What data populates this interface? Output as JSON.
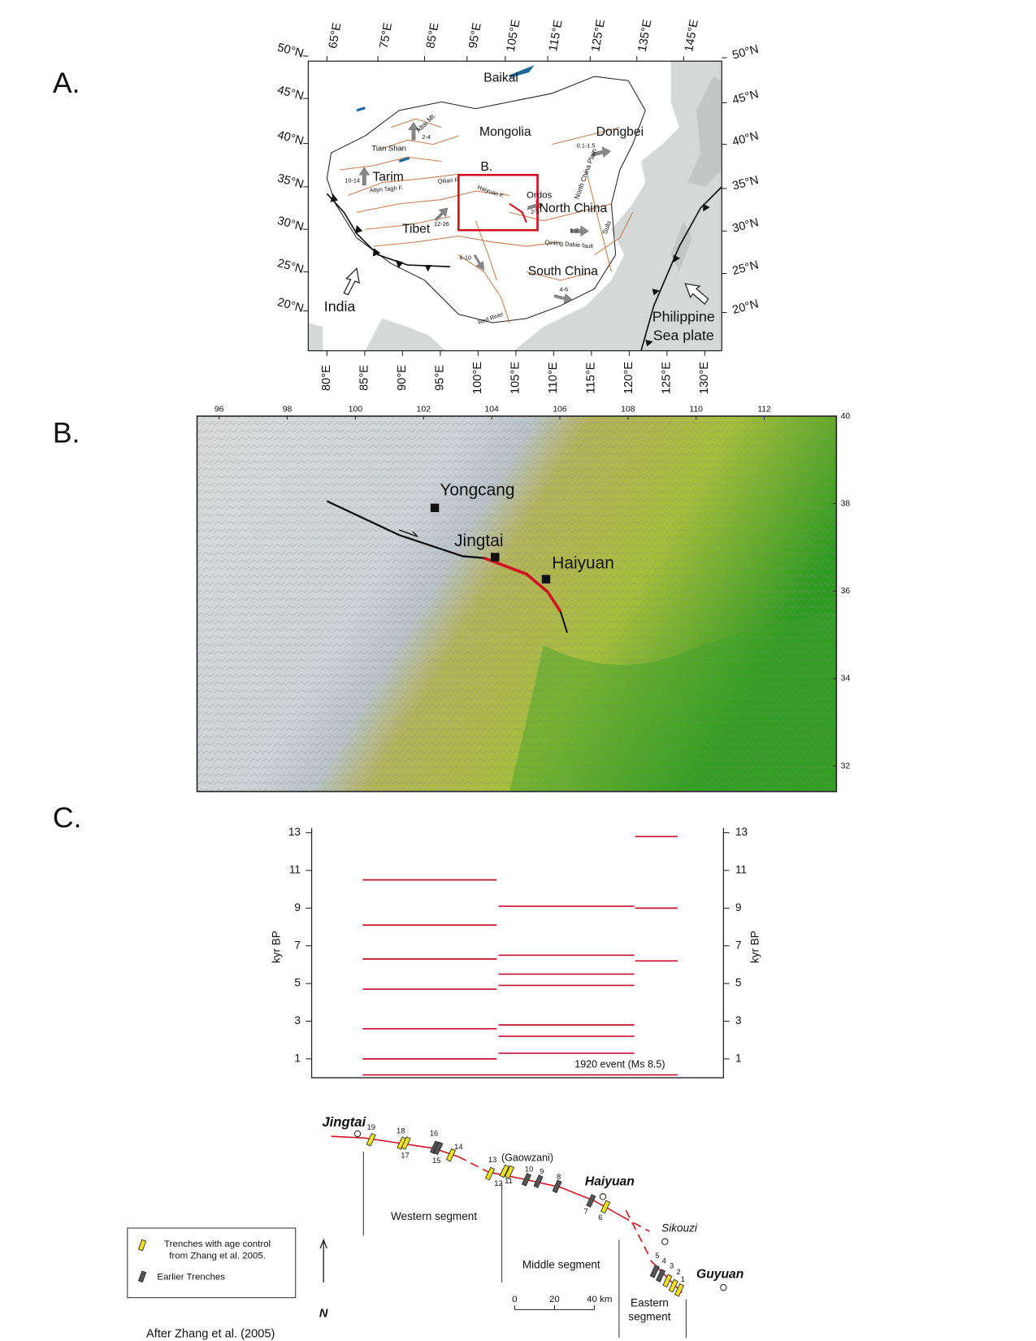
{
  "panels": {
    "a": "A.",
    "b": "B.",
    "c": "C."
  },
  "map_a": {
    "top_lon": [
      "65°E",
      "75°E",
      "85°E",
      "95°E",
      "105°E",
      "115°E",
      "125°E",
      "135°E",
      "145°E"
    ],
    "left_lat": [
      "50°N",
      "45°N",
      "40°N",
      "35°N",
      "30°N",
      "25°N",
      "20°N"
    ],
    "right_lat": [
      "50°N",
      "45°N",
      "40°N",
      "35°N",
      "30°N",
      "25°N",
      "20°N"
    ],
    "bottom_lon": [
      "80°E",
      "85°E",
      "90°E",
      "95°E",
      "100°E",
      "105°E",
      "110°E",
      "115°E",
      "120°E",
      "125°E",
      "130°E"
    ],
    "labels": [
      "Baikal",
      "Mongolia",
      "Dongbei",
      "Tarim",
      "Tibet",
      "B.",
      "Ordos",
      "North China",
      "South China",
      "India",
      "Philippine",
      "Sea plate",
      "Tian Shan",
      "Altyn Tagh F.",
      "Qilian F.",
      "Haiyuan F.",
      "Altai Mt.",
      "Qinling Dabie fault",
      "Red River",
      "North China Plain",
      "Sulu",
      "2-4",
      "10-14",
      "0.1-1.5",
      "12-26",
      "6-10",
      "4-6",
      "1-2",
      "2-3"
    ]
  },
  "map_b": {
    "lon_ticks": [
      96,
      98,
      100,
      102,
      104,
      106,
      108,
      110,
      112
    ],
    "lat_ticks": [
      40,
      38,
      36,
      34,
      32
    ],
    "places": [
      "Yongcang",
      "Jingtai",
      "Haiyuan"
    ]
  },
  "chart_data": {
    "type": "event-lines",
    "y_label": "kyr BP",
    "ylim": [
      0,
      13.25
    ],
    "yticks": [
      1,
      3,
      5,
      7,
      9,
      11,
      13
    ],
    "color": "#c8102e",
    "groups": [
      {
        "values": [
          10.5,
          8.1,
          6.3,
          4.7,
          2.6,
          1.0
        ]
      },
      {
        "values": [
          9.1,
          6.5,
          5.5,
          4.9,
          2.8,
          2.2,
          1.3
        ]
      },
      {
        "values": [
          12.8,
          9.0,
          6.2
        ]
      }
    ],
    "event": {
      "label": "1920 event (Ms 8.5)",
      "value": 0.15
    }
  },
  "trace": {
    "places": [
      "Jingtai",
      "Haiyuan",
      "Sikouzi",
      "Guyuan"
    ],
    "segments": [
      "Western segment",
      "Middle segment",
      "Eastern",
      "segment"
    ],
    "site_note": "(Gaowzani)",
    "trenches": [
      "19",
      "18",
      "17",
      "16",
      "15",
      "14",
      "13",
      "12",
      "11",
      "10",
      "9",
      "8",
      "7",
      "6",
      "5",
      "4",
      "3",
      "2",
      "1"
    ],
    "legend": [
      "Trenches with age control",
      "from Zhang et al. 2005.",
      "Earlier Trenches"
    ],
    "north": "N",
    "scale": [
      "0",
      "20",
      "40 km"
    ],
    "credit": "After Zhang et al. (2005)"
  }
}
